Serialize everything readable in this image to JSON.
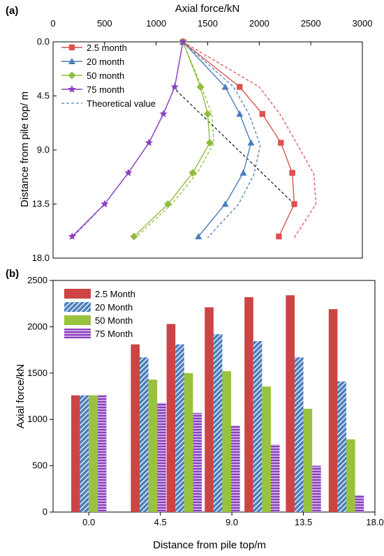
{
  "chart_data": [
    {
      "panel_label": "(a)",
      "type": "line",
      "xlabel": "Axial force/kN",
      "ylabel": "Distance from pile top/ m",
      "xlim": [
        0,
        3000
      ],
      "ylim": [
        18,
        0
      ],
      "x_ticks": [
        "0",
        "500",
        "1000",
        "1500",
        "2000",
        "2500",
        "3000"
      ],
      "y_ticks": [
        "0.0",
        "4.5",
        "9.0",
        "13.5",
        "18.0"
      ],
      "x_axis_position": "top",
      "y_axis_inverted": true,
      "legend_position": "top-left",
      "series": [
        {
          "name": "2.5 month",
          "marker": "square",
          "color": "#d9534f",
          "points": [
            [
              1260,
              0
            ],
            [
              1810,
              3.75
            ],
            [
              2030,
              6
            ],
            [
              2210,
              8.4
            ],
            [
              2320,
              10.9
            ],
            [
              2340,
              13.5
            ],
            [
              2190,
              16.2
            ]
          ]
        },
        {
          "name": "20 month",
          "marker": "triangle",
          "color": "#4a7ebb",
          "points": [
            [
              1260,
              0
            ],
            [
              1670,
              3.75
            ],
            [
              1810,
              6
            ],
            [
              1920,
              8.4
            ],
            [
              1845,
              10.9
            ],
            [
              1670,
              13.5
            ],
            [
              1410,
              16.2
            ]
          ]
        },
        {
          "name": "50 month",
          "marker": "diamond",
          "color": "#8fbc3f",
          "points": [
            [
              1260,
              0
            ],
            [
              1430,
              3.75
            ],
            [
              1500,
              6
            ],
            [
              1520,
              8.4
            ],
            [
              1355,
              10.9
            ],
            [
              1115,
              13.5
            ],
            [
              785,
              16.2
            ]
          ]
        },
        {
          "name": "75 month",
          "marker": "star",
          "color": "#8a3fbf",
          "points": [
            [
              1260,
              0
            ],
            [
              1180,
              3.75
            ],
            [
              1070,
              6
            ],
            [
              930,
              8.4
            ],
            [
              730,
              10.9
            ],
            [
              500,
              13.5
            ],
            [
              185,
              16.2
            ]
          ]
        }
      ],
      "theoretical_lines": [
        {
          "color": "#d9534f",
          "points": [
            [
              1260,
              0
            ],
            [
              2000,
              3.75
            ],
            [
              2200,
              6
            ],
            [
              2400,
              9
            ],
            [
              2530,
              11
            ],
            [
              2550,
              13.5
            ],
            [
              2340,
              16.3
            ]
          ]
        },
        {
          "color": "#4a7ebb",
          "points": [
            [
              1260,
              0
            ],
            [
              1750,
              3.75
            ],
            [
              1900,
              6
            ],
            [
              2010,
              8.6
            ],
            [
              1950,
              11
            ],
            [
              1800,
              13.5
            ],
            [
              1500,
              16.3
            ]
          ]
        },
        {
          "color": "#8fbc3f",
          "points": [
            [
              1260,
              0
            ],
            [
              1440,
              3.75
            ],
            [
              1540,
              6
            ],
            [
              1560,
              8.4
            ],
            [
              1400,
              10.9
            ],
            [
              1150,
              13.5
            ],
            [
              800,
              16.3
            ]
          ]
        },
        {
          "color": "#8a3fbf",
          "points": [
            [
              1260,
              0
            ],
            [
              1180,
              3.75
            ],
            [
              1070,
              6
            ],
            [
              930,
              8.4
            ],
            [
              730,
              10.9
            ],
            [
              500,
              13.5
            ],
            [
              185,
              16.3
            ]
          ]
        }
      ],
      "theoretical_legend": "Theoretical value",
      "reference_line": {
        "color": "#000000",
        "points": [
          [
            1160,
            3.75
          ],
          [
            2340,
            13.5
          ]
        ]
      }
    },
    {
      "panel_label": "(b)",
      "type": "bar",
      "xlabel": "Distance from pile top/m",
      "ylabel": "Axial force/kN",
      "xlim": [
        -2.25,
        18
      ],
      "ylim": [
        0,
        2500
      ],
      "x_ticks": [
        "0.0",
        "4.5",
        "9.0",
        "13.5",
        "18.0"
      ],
      "y_ticks": [
        "0",
        "500",
        "1000",
        "1500",
        "2000",
        "2500"
      ],
      "group_centers": [
        0,
        3.75,
        6,
        8.4,
        10.9,
        13.5,
        16.2
      ],
      "legend_position": "top-left",
      "series": [
        {
          "name": "2.5 Month",
          "color": "#cc4444",
          "pattern": "solid",
          "values": [
            1260,
            1810,
            2030,
            2210,
            2320,
            2340,
            2190
          ]
        },
        {
          "name": "20 Month",
          "color": "#4a7ebb",
          "pattern": "diagonal",
          "values": [
            1260,
            1670,
            1810,
            1920,
            1845,
            1670,
            1410
          ]
        },
        {
          "name": "50 Month",
          "color": "#99c23f",
          "pattern": "solid",
          "values": [
            1260,
            1430,
            1500,
            1520,
            1355,
            1115,
            785
          ]
        },
        {
          "name": "75 Month",
          "color": "#8a3fbf",
          "pattern": "horizontal",
          "values": [
            1260,
            1180,
            1070,
            930,
            730,
            500,
            185
          ]
        }
      ]
    }
  ]
}
